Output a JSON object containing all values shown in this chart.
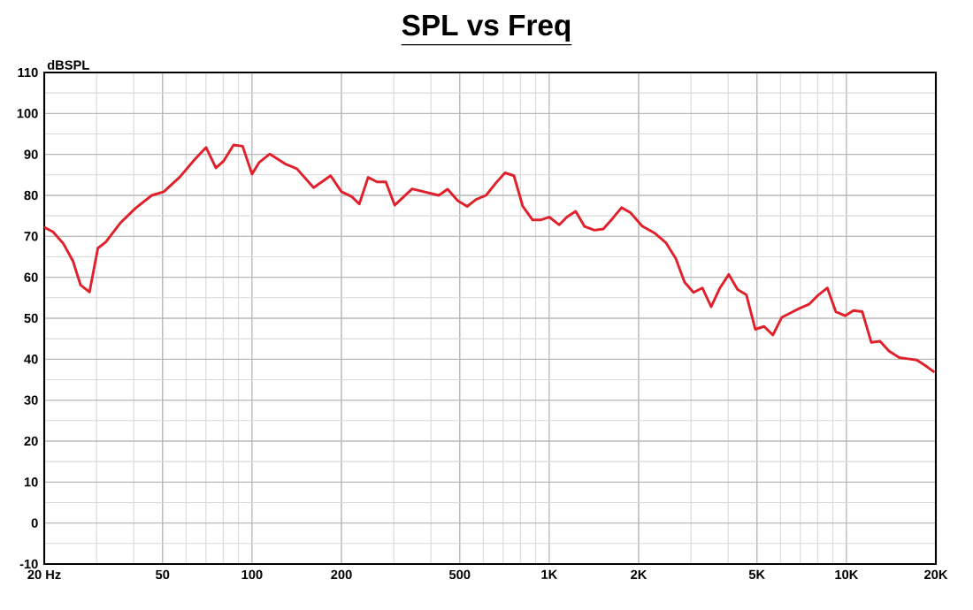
{
  "chart_data": {
    "type": "line",
    "title": "SPL vs Freq",
    "ylabel": "dBSPL",
    "log": "x",
    "grid": true,
    "marker": "none",
    "line_style": "solid",
    "xlim": [
      20,
      20000
    ],
    "ylim": [
      -10,
      110
    ],
    "xticks": [
      {
        "value": 20,
        "label": "20 Hz"
      },
      50,
      100,
      200,
      500,
      {
        "value": 1000,
        "label": "1K"
      },
      {
        "value": 2000,
        "label": "2K"
      },
      {
        "value": 5000,
        "label": "5K"
      },
      {
        "value": 10000,
        "label": "10K"
      },
      {
        "value": 20000,
        "label": "20K"
      }
    ],
    "yticks": [
      -10,
      0,
      10,
      20,
      30,
      40,
      50,
      60,
      70,
      80,
      90,
      100,
      110
    ],
    "series": [
      {
        "color": "#e0202a",
        "x": [
          20,
          21.4,
          23.2,
          25,
          26.5,
          28.4,
          30.3,
          32.2,
          36.1,
          40.6,
          46,
          50.5,
          57.2,
          64.2,
          70.1,
          75.6,
          80.3,
          86.7,
          93,
          100,
          105.6,
          114.8,
          129.2,
          141.6,
          161.2,
          183.9,
          200,
          216.5,
          229.6,
          245.9,
          263.4,
          282.1,
          302.1,
          345.9,
          425,
          455.1,
          492.3,
          529.7,
          567.3,
          613,
          663,
          710,
          761,
          815,
          880,
          934,
          1000,
          1081,
          1147,
          1228,
          1315,
          1421,
          1521,
          1636,
          1752,
          1876,
          2055,
          2272,
          2467,
          2665,
          2855,
          3059,
          3276,
          3507,
          3755,
          4021,
          4305,
          4609,
          4936,
          5285,
          5658,
          6058,
          6530,
          6947,
          7490,
          8055,
          8630,
          9210,
          9900,
          10560,
          11310,
          12130,
          12980,
          13900,
          15060,
          16120,
          17260,
          18480,
          19800
        ],
        "values": [
          72.2,
          71.1,
          68.2,
          63.9,
          58.1,
          56.4,
          67.1,
          68.6,
          73.3,
          76.9,
          80,
          80.9,
          84.5,
          88.8,
          91.7,
          86.7,
          88.4,
          92.3,
          92,
          85.2,
          88,
          90.1,
          87.7,
          86.5,
          81.9,
          84.8,
          80.9,
          79.7,
          77.9,
          84.4,
          83.3,
          83.3,
          77.6,
          81.6,
          80,
          81.5,
          78.7,
          77.3,
          79,
          80,
          83.1,
          85.5,
          84.8,
          77.3,
          74,
          74,
          74.7,
          72.8,
          74.7,
          76.1,
          72.4,
          71.5,
          71.8,
          74.4,
          77,
          75.8,
          72.5,
          70.7,
          68.5,
          64.6,
          58.8,
          56.3,
          57.4,
          52.8,
          57.4,
          60.7,
          57,
          55.7,
          47.3,
          48,
          45.9,
          50.2,
          51.4,
          52.4,
          53.4,
          55.7,
          57.4,
          51.6,
          50.6,
          51.9,
          51.6,
          44.1,
          44.4,
          42,
          40.4,
          40.1,
          39.8,
          38.4,
          36.8
        ]
      }
    ]
  }
}
